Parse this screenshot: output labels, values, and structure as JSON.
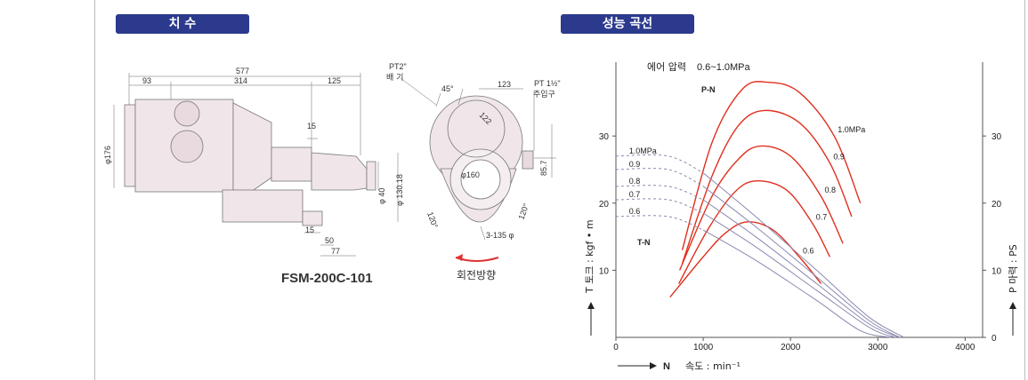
{
  "headers": {
    "dimensions": "치 수",
    "performance": "성능 곡선"
  },
  "drawing": {
    "model": "FSM-200C-101",
    "rotation_label": "회전방향",
    "dims": {
      "d577": "577",
      "d93": "93",
      "d314": "314",
      "d125": "125",
      "d15a": "15",
      "d15b": "15",
      "d50": "50",
      "d77": "77",
      "phi176": "φ176",
      "phi40": "φ 40",
      "phi13018": "φ 130.18",
      "pt2": "PT2\"",
      "baegi": "배 기",
      "a45": "45°",
      "d123": "123",
      "pt112": "PT 1½\"",
      "juipgu": "주입구",
      "d122": "122",
      "phi160": "φ160",
      "d857": "85.7",
      "a120a": "120°",
      "a120b": "120°",
      "bolt": "3-135 φ"
    }
  },
  "chart": {
    "air_pressure_label": "에어 압력",
    "air_pressure_range": "0.6~1.0MPa",
    "pn_label": "P-N",
    "tn_label": "T-N",
    "y_left_label": "T 토크 : kgf • m",
    "y_right_label": "P 마력 : PS",
    "x_label": "N",
    "x_sub": "속도 : min⁻¹"
  },
  "chart_data": {
    "type": "line",
    "x_ticks": [
      "0",
      "1000",
      "2000",
      "3000",
      "4000"
    ],
    "y_left_ticks": [
      "10",
      "20",
      "30"
    ],
    "y_right_ticks": [
      "0",
      "10",
      "20",
      "30"
    ],
    "xlim": [
      0,
      4200
    ],
    "ylim": [
      0,
      41
    ],
    "series_pn": [
      {
        "name": "1.0MPa",
        "points": [
          [
            760,
            13
          ],
          [
            1100,
            29
          ],
          [
            1450,
            37
          ],
          [
            1750,
            38
          ],
          [
            2100,
            36.5
          ],
          [
            2500,
            30
          ],
          [
            2800,
            20
          ]
        ]
      },
      {
        "name": "0.9",
        "points": [
          [
            760,
            11
          ],
          [
            1100,
            24
          ],
          [
            1400,
            31.5
          ],
          [
            1700,
            33.8
          ],
          [
            2100,
            32
          ],
          [
            2450,
            26
          ],
          [
            2700,
            18
          ]
        ]
      },
      {
        "name": "0.8",
        "points": [
          [
            730,
            10
          ],
          [
            1100,
            21
          ],
          [
            1400,
            26.5
          ],
          [
            1650,
            28.5
          ],
          [
            2000,
            27
          ],
          [
            2350,
            21
          ],
          [
            2600,
            14
          ]
        ]
      },
      {
        "name": "0.7",
        "points": [
          [
            720,
            8
          ],
          [
            1050,
            16
          ],
          [
            1350,
            21.5
          ],
          [
            1600,
            23.3
          ],
          [
            1950,
            22
          ],
          [
            2250,
            17
          ],
          [
            2450,
            12
          ]
        ]
      },
      {
        "name": "0.6",
        "points": [
          [
            620,
            6
          ],
          [
            1000,
            12
          ],
          [
            1250,
            15.5
          ],
          [
            1500,
            17.2
          ],
          [
            1800,
            16
          ],
          [
            2100,
            12
          ],
          [
            2350,
            8
          ]
        ]
      }
    ],
    "series_tn": [
      {
        "name": "1.0MPa",
        "points": [
          [
            0,
            27
          ],
          [
            600,
            27
          ],
          [
            1000,
            24.5
          ],
          [
            1600,
            18
          ],
          [
            2300,
            10
          ],
          [
            2900,
            3
          ],
          [
            3300,
            0
          ]
        ]
      },
      {
        "name": "0.9",
        "points": [
          [
            0,
            25
          ],
          [
            600,
            25
          ],
          [
            1000,
            22.5
          ],
          [
            1600,
            16.5
          ],
          [
            2300,
            9
          ],
          [
            2900,
            2.5
          ],
          [
            3250,
            0
          ]
        ]
      },
      {
        "name": "0.8",
        "points": [
          [
            0,
            22.5
          ],
          [
            600,
            22.5
          ],
          [
            1000,
            20.5
          ],
          [
            1600,
            15
          ],
          [
            2300,
            8
          ],
          [
            2900,
            2
          ],
          [
            3250,
            0
          ]
        ]
      },
      {
        "name": "0.7",
        "points": [
          [
            0,
            20.5
          ],
          [
            600,
            20.5
          ],
          [
            1000,
            18.5
          ],
          [
            1600,
            13.5
          ],
          [
            2300,
            7
          ],
          [
            2900,
            1.5
          ],
          [
            3200,
            0
          ]
        ]
      },
      {
        "name": "0.6",
        "points": [
          [
            0,
            18
          ],
          [
            600,
            18
          ],
          [
            1000,
            16
          ],
          [
            1600,
            11.5
          ],
          [
            2300,
            5.5
          ],
          [
            2800,
            1
          ],
          [
            3150,
            0
          ]
        ]
      }
    ]
  }
}
